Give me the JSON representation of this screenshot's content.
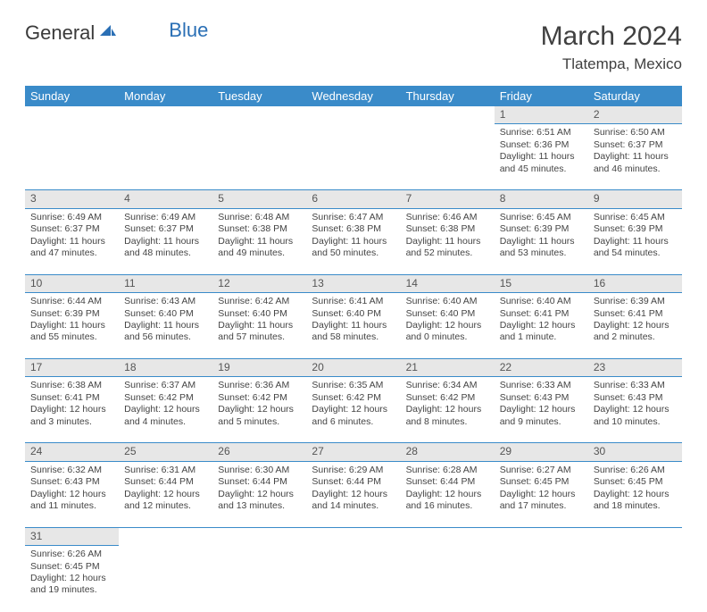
{
  "logo": {
    "part1": "General",
    "part2": "Blue"
  },
  "title": "March 2024",
  "location": "Tlatempa, Mexico",
  "colors": {
    "header_bg": "#3a8bc9",
    "header_text": "#ffffff",
    "daynum_bg": "#e7e7e7",
    "border": "#3a8bc9",
    "body_text": "#444444",
    "logo_gray": "#3a3a3a",
    "logo_blue": "#2a6fb5"
  },
  "weekdays": [
    "Sunday",
    "Monday",
    "Tuesday",
    "Wednesday",
    "Thursday",
    "Friday",
    "Saturday"
  ],
  "weeks": [
    [
      null,
      null,
      null,
      null,
      null,
      {
        "n": "1",
        "sunrise": "Sunrise: 6:51 AM",
        "sunset": "Sunset: 6:36 PM",
        "daylight": "Daylight: 11 hours and 45 minutes."
      },
      {
        "n": "2",
        "sunrise": "Sunrise: 6:50 AM",
        "sunset": "Sunset: 6:37 PM",
        "daylight": "Daylight: 11 hours and 46 minutes."
      }
    ],
    [
      {
        "n": "3",
        "sunrise": "Sunrise: 6:49 AM",
        "sunset": "Sunset: 6:37 PM",
        "daylight": "Daylight: 11 hours and 47 minutes."
      },
      {
        "n": "4",
        "sunrise": "Sunrise: 6:49 AM",
        "sunset": "Sunset: 6:37 PM",
        "daylight": "Daylight: 11 hours and 48 minutes."
      },
      {
        "n": "5",
        "sunrise": "Sunrise: 6:48 AM",
        "sunset": "Sunset: 6:38 PM",
        "daylight": "Daylight: 11 hours and 49 minutes."
      },
      {
        "n": "6",
        "sunrise": "Sunrise: 6:47 AM",
        "sunset": "Sunset: 6:38 PM",
        "daylight": "Daylight: 11 hours and 50 minutes."
      },
      {
        "n": "7",
        "sunrise": "Sunrise: 6:46 AM",
        "sunset": "Sunset: 6:38 PM",
        "daylight": "Daylight: 11 hours and 52 minutes."
      },
      {
        "n": "8",
        "sunrise": "Sunrise: 6:45 AM",
        "sunset": "Sunset: 6:39 PM",
        "daylight": "Daylight: 11 hours and 53 minutes."
      },
      {
        "n": "9",
        "sunrise": "Sunrise: 6:45 AM",
        "sunset": "Sunset: 6:39 PM",
        "daylight": "Daylight: 11 hours and 54 minutes."
      }
    ],
    [
      {
        "n": "10",
        "sunrise": "Sunrise: 6:44 AM",
        "sunset": "Sunset: 6:39 PM",
        "daylight": "Daylight: 11 hours and 55 minutes."
      },
      {
        "n": "11",
        "sunrise": "Sunrise: 6:43 AM",
        "sunset": "Sunset: 6:40 PM",
        "daylight": "Daylight: 11 hours and 56 minutes."
      },
      {
        "n": "12",
        "sunrise": "Sunrise: 6:42 AM",
        "sunset": "Sunset: 6:40 PM",
        "daylight": "Daylight: 11 hours and 57 minutes."
      },
      {
        "n": "13",
        "sunrise": "Sunrise: 6:41 AM",
        "sunset": "Sunset: 6:40 PM",
        "daylight": "Daylight: 11 hours and 58 minutes."
      },
      {
        "n": "14",
        "sunrise": "Sunrise: 6:40 AM",
        "sunset": "Sunset: 6:40 PM",
        "daylight": "Daylight: 12 hours and 0 minutes."
      },
      {
        "n": "15",
        "sunrise": "Sunrise: 6:40 AM",
        "sunset": "Sunset: 6:41 PM",
        "daylight": "Daylight: 12 hours and 1 minute."
      },
      {
        "n": "16",
        "sunrise": "Sunrise: 6:39 AM",
        "sunset": "Sunset: 6:41 PM",
        "daylight": "Daylight: 12 hours and 2 minutes."
      }
    ],
    [
      {
        "n": "17",
        "sunrise": "Sunrise: 6:38 AM",
        "sunset": "Sunset: 6:41 PM",
        "daylight": "Daylight: 12 hours and 3 minutes."
      },
      {
        "n": "18",
        "sunrise": "Sunrise: 6:37 AM",
        "sunset": "Sunset: 6:42 PM",
        "daylight": "Daylight: 12 hours and 4 minutes."
      },
      {
        "n": "19",
        "sunrise": "Sunrise: 6:36 AM",
        "sunset": "Sunset: 6:42 PM",
        "daylight": "Daylight: 12 hours and 5 minutes."
      },
      {
        "n": "20",
        "sunrise": "Sunrise: 6:35 AM",
        "sunset": "Sunset: 6:42 PM",
        "daylight": "Daylight: 12 hours and 6 minutes."
      },
      {
        "n": "21",
        "sunrise": "Sunrise: 6:34 AM",
        "sunset": "Sunset: 6:42 PM",
        "daylight": "Daylight: 12 hours and 8 minutes."
      },
      {
        "n": "22",
        "sunrise": "Sunrise: 6:33 AM",
        "sunset": "Sunset: 6:43 PM",
        "daylight": "Daylight: 12 hours and 9 minutes."
      },
      {
        "n": "23",
        "sunrise": "Sunrise: 6:33 AM",
        "sunset": "Sunset: 6:43 PM",
        "daylight": "Daylight: 12 hours and 10 minutes."
      }
    ],
    [
      {
        "n": "24",
        "sunrise": "Sunrise: 6:32 AM",
        "sunset": "Sunset: 6:43 PM",
        "daylight": "Daylight: 12 hours and 11 minutes."
      },
      {
        "n": "25",
        "sunrise": "Sunrise: 6:31 AM",
        "sunset": "Sunset: 6:44 PM",
        "daylight": "Daylight: 12 hours and 12 minutes."
      },
      {
        "n": "26",
        "sunrise": "Sunrise: 6:30 AM",
        "sunset": "Sunset: 6:44 PM",
        "daylight": "Daylight: 12 hours and 13 minutes."
      },
      {
        "n": "27",
        "sunrise": "Sunrise: 6:29 AM",
        "sunset": "Sunset: 6:44 PM",
        "daylight": "Daylight: 12 hours and 14 minutes."
      },
      {
        "n": "28",
        "sunrise": "Sunrise: 6:28 AM",
        "sunset": "Sunset: 6:44 PM",
        "daylight": "Daylight: 12 hours and 16 minutes."
      },
      {
        "n": "29",
        "sunrise": "Sunrise: 6:27 AM",
        "sunset": "Sunset: 6:45 PM",
        "daylight": "Daylight: 12 hours and 17 minutes."
      },
      {
        "n": "30",
        "sunrise": "Sunrise: 6:26 AM",
        "sunset": "Sunset: 6:45 PM",
        "daylight": "Daylight: 12 hours and 18 minutes."
      }
    ],
    [
      {
        "n": "31",
        "sunrise": "Sunrise: 6:26 AM",
        "sunset": "Sunset: 6:45 PM",
        "daylight": "Daylight: 12 hours and 19 minutes."
      },
      null,
      null,
      null,
      null,
      null,
      null
    ]
  ]
}
